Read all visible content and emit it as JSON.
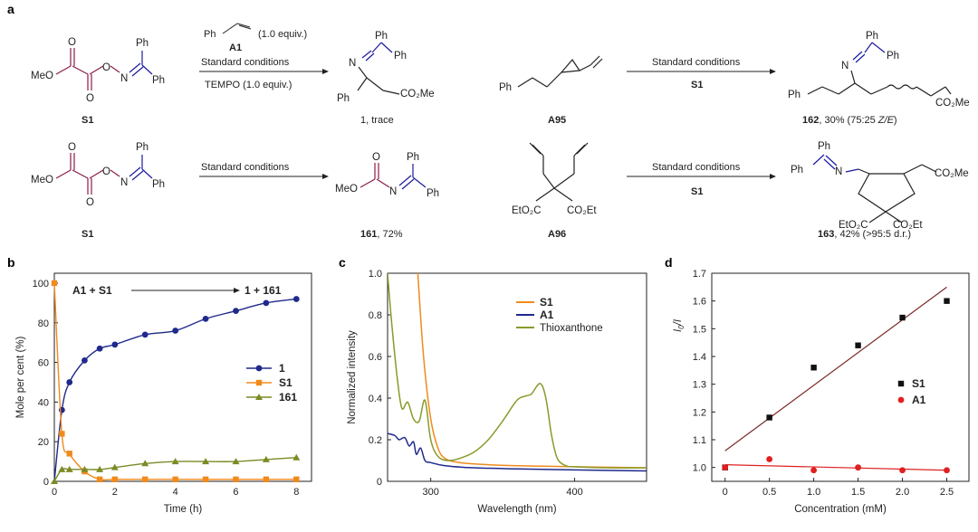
{
  "panel_labels": [
    "a",
    "b",
    "c",
    "d"
  ],
  "scheme": {
    "reactions": [
      {
        "reactant": "S1",
        "reagent_above_formula": "Ph",
        "reagent_above_name": "A1",
        "reagent_above_equiv": "(1.0 equiv.)",
        "conditions": "Standard conditions",
        "reagent_below": "TEMPO (1.0 equiv.)",
        "product_caption": "1, trace"
      },
      {
        "reactant": "A95",
        "conditions": "Standard conditions",
        "reagent_below": "S1",
        "product_id": "162",
        "product_caption_rest": ", 30% (75:25 ",
        "product_caption_ze": "Z/E",
        "product_caption_end": ")"
      },
      {
        "reactant": "S1",
        "conditions": "Standard conditions",
        "product_id": "161",
        "product_caption_rest": ", 72%"
      },
      {
        "reactant": "A96",
        "conditions": "Standard conditions",
        "reagent_below": "S1",
        "product_id": "163",
        "product_caption_rest": ", 42% (>95:5 d.r.)"
      }
    ],
    "atoms": {
      "meo": "MeO",
      "o": "O",
      "n": "N",
      "ph": "Ph",
      "co2me": "CO₂Me",
      "eto2c": "EtO₂C",
      "co2et": "CO₂Et"
    }
  },
  "colors": {
    "s1_fragment": "#8b1a4a",
    "imine_fragment": "#1a1aa0",
    "series_1": "#1f2a8c",
    "series_S1": "#f08a1c",
    "series_161": "#7c8a24",
    "thioxanthone": "#8a9a2a",
    "fit_S1": "#7a2a2a",
    "fit_A1": "#e02020"
  },
  "chart_data": [
    {
      "panel": "b",
      "type": "line",
      "xlabel": "Time (h)",
      "ylabel": "Mole per cent (%)",
      "xlim": [
        0,
        8.5
      ],
      "ylim": [
        0,
        105
      ],
      "xticks": [
        0,
        2,
        4,
        6,
        8
      ],
      "yticks": [
        0,
        20,
        40,
        60,
        80,
        100
      ],
      "annotation": {
        "left": "A1 + S1",
        "right": "1 + 161"
      },
      "legend_position": "right-middle",
      "series": [
        {
          "name": "1",
          "marker": "circle",
          "x": [
            0.25,
            0.5,
            1,
            1.5,
            2,
            3,
            4,
            5,
            6,
            7,
            8
          ],
          "y": [
            36,
            50,
            61,
            67,
            69,
            74,
            76,
            82,
            86,
            90,
            92
          ]
        },
        {
          "name": "S1",
          "marker": "square",
          "x": [
            0,
            0.25,
            0.5,
            1,
            1.5,
            2,
            3,
            4,
            5,
            6,
            7,
            8
          ],
          "y": [
            100,
            24,
            14,
            5,
            1,
            1,
            1,
            1,
            1,
            1,
            1,
            1
          ]
        },
        {
          "name": "161",
          "marker": "triangle",
          "x": [
            0,
            0.25,
            0.5,
            1,
            1.5,
            2,
            3,
            4,
            5,
            6,
            7,
            8
          ],
          "y": [
            0,
            6,
            6,
            6,
            6,
            7,
            9,
            10,
            10,
            10,
            11,
            12
          ]
        }
      ]
    },
    {
      "panel": "c",
      "type": "line",
      "xlabel": "Wavelength (nm)",
      "ylabel": "Normalized intensity",
      "xlim": [
        270,
        450
      ],
      "ylim": [
        0,
        1.0
      ],
      "xticks": [
        300,
        400
      ],
      "yticks": [
        0,
        0.2,
        0.4,
        0.6,
        0.8,
        1.0
      ],
      "legend_position": "top-right",
      "series": [
        {
          "name": "S1",
          "x": [
            291,
            295,
            300,
            305,
            310,
            320,
            340,
            360,
            400,
            450
          ],
          "y": [
            1.0,
            0.6,
            0.3,
            0.16,
            0.11,
            0.09,
            0.08,
            0.075,
            0.07,
            0.065
          ]
        },
        {
          "name": "A1",
          "x": [
            270,
            275,
            278,
            282,
            285,
            288,
            290,
            293,
            296,
            300,
            310,
            330,
            360,
            400,
            450
          ],
          "y": [
            0.23,
            0.22,
            0.2,
            0.21,
            0.17,
            0.19,
            0.13,
            0.16,
            0.1,
            0.09,
            0.075,
            0.065,
            0.06,
            0.055,
            0.05
          ]
        },
        {
          "name": "Thioxanthone",
          "x": [
            270,
            273,
            277,
            280,
            284,
            288,
            292,
            296,
            300,
            305,
            312,
            320,
            330,
            340,
            350,
            360,
            366,
            370,
            376,
            380,
            384,
            388,
            394,
            400,
            420,
            450
          ],
          "y": [
            1.0,
            0.75,
            0.48,
            0.35,
            0.38,
            0.3,
            0.29,
            0.39,
            0.2,
            0.12,
            0.1,
            0.11,
            0.14,
            0.2,
            0.29,
            0.39,
            0.41,
            0.42,
            0.47,
            0.4,
            0.22,
            0.11,
            0.075,
            0.07,
            0.065,
            0.065
          ]
        }
      ]
    },
    {
      "panel": "d",
      "type": "scatter",
      "xlabel": "Concentration (mM)",
      "ylabel": "I₀/I",
      "ylabel_main": "I",
      "ylabel_sub": "0",
      "ylabel_tail": "/I",
      "xlim": [
        -0.15,
        2.75
      ],
      "ylim": [
        0.95,
        1.7
      ],
      "xticks": [
        0,
        0.5,
        1.0,
        1.5,
        2.0,
        2.5
      ],
      "yticks": [
        1.0,
        1.1,
        1.2,
        1.3,
        1.4,
        1.5,
        1.6,
        1.7
      ],
      "legend_position": "right-middle",
      "series": [
        {
          "name": "S1",
          "marker": "square",
          "x": [
            0,
            0.5,
            1.0,
            1.5,
            2.0,
            2.5
          ],
          "y": [
            1.0,
            1.18,
            1.36,
            1.44,
            1.54,
            1.6
          ],
          "fit": {
            "x": [
              0,
              2.5
            ],
            "y": [
              1.06,
              1.65
            ]
          }
        },
        {
          "name": "A1",
          "marker": "circle",
          "x": [
            0,
            0.5,
            1.0,
            1.5,
            2.0,
            2.5
          ],
          "y": [
            1.0,
            1.03,
            0.99,
            1.0,
            0.99,
            0.99
          ],
          "fit": {
            "x": [
              0,
              2.5
            ],
            "y": [
              1.01,
              0.99
            ]
          }
        }
      ]
    }
  ]
}
